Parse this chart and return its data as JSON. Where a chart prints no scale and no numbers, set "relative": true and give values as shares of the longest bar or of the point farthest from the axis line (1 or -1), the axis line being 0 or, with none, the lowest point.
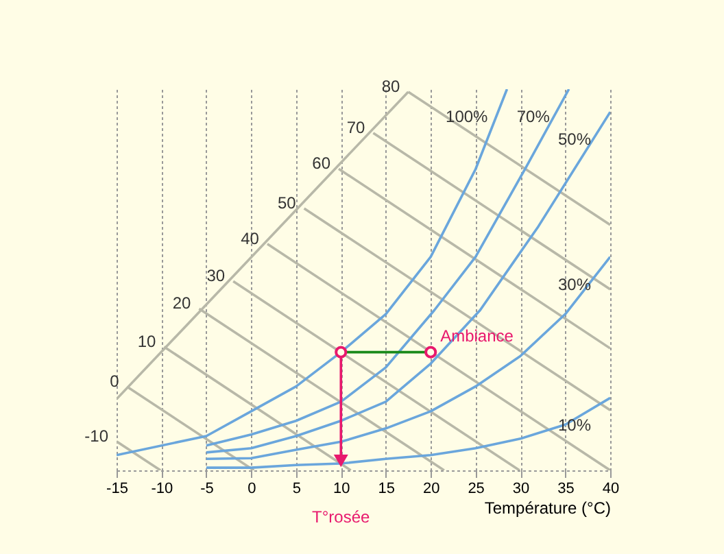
{
  "chart_data": {
    "type": "line",
    "relative": true,
    "xlabel": "Température (°C)",
    "xlim": [
      -15,
      40
    ],
    "xticks": [
      -15,
      -10,
      -5,
      0,
      5,
      10,
      15,
      20,
      25,
      30,
      35,
      40
    ],
    "grid": "x",
    "series": [
      {
        "color": "#b8b8a8",
        "x": [
          -15,
          17.5
        ],
        "values": [
          0.187,
          0.993
        ]
      },
      {
        "color": "#b8b8a8",
        "x": [
          17.5,
          40
        ],
        "values": [
          0.993,
          0.644
        ]
      },
      {
        "color": "#b8b8a8",
        "x": [
          13.6,
          40
        ],
        "values": [
          0.885,
          0.475
        ]
      },
      {
        "color": "#b8b8a8",
        "x": [
          9.75,
          40
        ],
        "values": [
          0.791,
          0.32
        ]
      },
      {
        "color": "#b8b8a8",
        "x": [
          5.9,
          40
        ],
        "values": [
          0.687,
          0.158
        ]
      },
      {
        "color": "#b8b8a8",
        "x": [
          1.8,
          40
        ],
        "values": [
          0.594,
          0.0
        ]
      },
      {
        "color": "#b8b8a8",
        "x": [
          -2.0,
          29.9
        ],
        "values": [
          0.496,
          0.0
        ]
      },
      {
        "color": "#b8b8a8",
        "x": [
          -5.8,
          21.5
        ],
        "values": [
          0.424,
          0.0
        ]
      },
      {
        "color": "#b8b8a8",
        "x": [
          -9.7,
          11.1
        ],
        "values": [
          0.324,
          0.0
        ]
      },
      {
        "color": "#b8b8a8",
        "x": [
          -13.8,
          0.3
        ],
        "values": [
          0.219,
          0.0
        ]
      },
      {
        "color": "#b8b8a8",
        "x": [
          -15,
          -10.1
        ],
        "values": [
          0.076,
          0.0
        ]
      },
      {
        "name": "100%",
        "color": "#6aa6dc",
        "x": [
          -15,
          -5,
          0,
          5,
          10,
          15,
          20,
          25,
          28.5
        ],
        "values": [
          0.04,
          0.09,
          0.155,
          0.22,
          0.31,
          0.41,
          0.56,
          0.79,
          1.0
        ]
      },
      {
        "name": "70%",
        "color": "#6aa6dc",
        "x": [
          -5,
          0,
          5,
          10,
          15,
          20.4,
          25,
          30.5,
          35.4
        ],
        "values": [
          0.065,
          0.094,
          0.13,
          0.18,
          0.27,
          0.42,
          0.56,
          0.79,
          1.0
        ]
      },
      {
        "name": "50%",
        "color": "#6aa6dc",
        "x": [
          -5,
          0,
          5,
          10,
          15,
          20,
          25.5,
          32,
          40
        ],
        "values": [
          0.047,
          0.058,
          0.09,
          0.13,
          0.18,
          0.28,
          0.42,
          0.64,
          0.94
        ]
      },
      {
        "name": "30%",
        "color": "#6aa6dc",
        "x": [
          -5,
          0,
          5,
          10,
          15,
          20,
          25,
          30,
          35,
          40
        ],
        "values": [
          0.03,
          0.032,
          0.054,
          0.075,
          0.11,
          0.155,
          0.22,
          0.3,
          0.41,
          0.56
        ]
      },
      {
        "name": "10%",
        "color": "#6aa6dc",
        "x": [
          -5,
          0,
          5,
          10,
          15,
          20,
          25,
          30,
          35,
          40
        ],
        "values": [
          0.007,
          0.007,
          0.014,
          0.018,
          0.03,
          0.04,
          0.058,
          0.083,
          0.12,
          0.19
        ]
      },
      {
        "color": "#1a8a1a",
        "x": [
          10,
          20
        ],
        "values": [
          0.31,
          0.31
        ]
      },
      {
        "color": "#e8186d",
        "x": [
          10,
          10
        ],
        "values": [
          0.31,
          0.025
        ],
        "marker": "triangle"
      },
      {
        "type": "scatter",
        "color": "#e8186d",
        "x": [
          10
        ],
        "values": [
          0.31
        ]
      },
      {
        "type": "scatter",
        "name": "Ambiance",
        "color": "#e8186d",
        "x": [
          20
        ],
        "values": [
          0.31
        ]
      }
    ],
    "annotations": [
      {
        "text": "80",
        "x": 17.5,
        "y": 0.993
      },
      {
        "text": "70",
        "x": 13.6,
        "y": 0.885
      },
      {
        "text": "60",
        "x": 9.75,
        "y": 0.791
      },
      {
        "text": "50",
        "x": 5.9,
        "y": 0.687
      },
      {
        "text": "40",
        "x": 1.8,
        "y": 0.594
      },
      {
        "text": "30",
        "x": -2.0,
        "y": 0.496
      },
      {
        "text": "20",
        "x": -5.8,
        "y": 0.424
      },
      {
        "text": "10",
        "x": -9.7,
        "y": 0.324
      },
      {
        "text": "0",
        "x": -13.8,
        "y": 0.219
      },
      {
        "text": "-10",
        "x": -15,
        "y": 0.076
      },
      {
        "text": "T°rosée",
        "x": 10,
        "y": 0
      }
    ]
  }
}
